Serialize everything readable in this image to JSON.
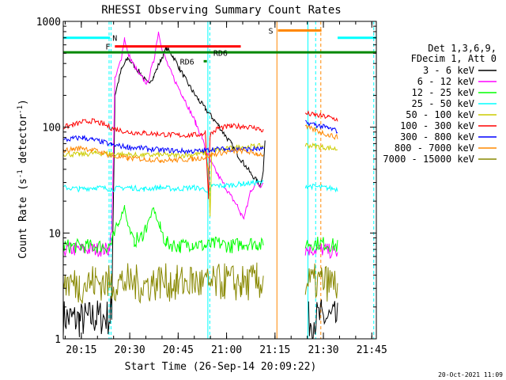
{
  "chart_data": {
    "type": "line",
    "title": "RHESSI Observing Summary Count Rates",
    "xlabel": "Start Time (26-Sep-14 20:09:22)",
    "ylabel_main": "Count Rate (s",
    "ylabel_sup": "-1",
    "ylabel_mid": " detector",
    "ylabel_sup2": "-1",
    "ylabel_end": ")",
    "footer": "20-Oct-2021 11:09",
    "y_scale": "log",
    "ylim": [
      1,
      1000
    ],
    "xlim_minutes": [
      0,
      97
    ],
    "x_ticks": [
      {
        "label": "20:15",
        "minutes": 5.6
      },
      {
        "label": "20:30",
        "minutes": 20.6
      },
      {
        "label": "20:45",
        "minutes": 35.6
      },
      {
        "label": "21:00",
        "minutes": 50.6
      },
      {
        "label": "21:15",
        "minutes": 65.6
      },
      {
        "label": "21:30",
        "minutes": 80.6
      },
      {
        "label": "21:45",
        "minutes": 95.6
      }
    ],
    "y_ticks": [
      {
        "label": "1",
        "value": 1
      },
      {
        "label": "10",
        "value": 10
      },
      {
        "label": "100",
        "value": 100
      },
      {
        "label": "1000",
        "value": 1000
      }
    ],
    "legend_header": [
      "Det 1,3,6,9,",
      "FDecim 1, Att 0"
    ],
    "series": [
      {
        "name": "3 - 6 keV",
        "color": "#000000",
        "points": [
          [
            0,
            1.6
          ],
          [
            5,
            1.5
          ],
          [
            10,
            1.6
          ],
          [
            14.5,
            1.6
          ],
          [
            15,
            2
          ],
          [
            16,
            200
          ],
          [
            18,
            350
          ],
          [
            20,
            450
          ],
          [
            22,
            380
          ],
          [
            24,
            320
          ],
          [
            26,
            260
          ],
          [
            28,
            300
          ],
          [
            30,
            420
          ],
          [
            32,
            560
          ],
          [
            34,
            470
          ],
          [
            36,
            360
          ],
          [
            38,
            280
          ],
          [
            40,
            220
          ],
          [
            42,
            180
          ],
          [
            44,
            150
          ],
          [
            46,
            125
          ],
          [
            48,
            105
          ],
          [
            50,
            85
          ],
          [
            52,
            70
          ],
          [
            54,
            55
          ],
          [
            56,
            45
          ],
          [
            58,
            37
          ],
          [
            60,
            31
          ],
          [
            61,
            28
          ],
          [
            62,
            40
          ],
          [
            62.5,
            75
          ],
          [
            75,
            null
          ],
          [
            76,
            1.5
          ],
          [
            80,
            1.6
          ],
          [
            85,
            1.5
          ],
          [
            85.5,
            null
          ]
        ]
      },
      {
        "name": "6 - 12 keV",
        "color": "#ff00ff",
        "points": [
          [
            0,
            7
          ],
          [
            14,
            7
          ],
          [
            15,
            10
          ],
          [
            16,
            280
          ],
          [
            18,
            450
          ],
          [
            19,
            700
          ],
          [
            20,
            500
          ],
          [
            22,
            380
          ],
          [
            24,
            300
          ],
          [
            26,
            260
          ],
          [
            28,
            420
          ],
          [
            29.5,
            800
          ],
          [
            31,
            500
          ],
          [
            33,
            350
          ],
          [
            35,
            260
          ],
          [
            37,
            200
          ],
          [
            39,
            150
          ],
          [
            41,
            110
          ],
          [
            43,
            80
          ],
          [
            44,
            62
          ],
          [
            46,
            45
          ],
          [
            48,
            35
          ],
          [
            50,
            28
          ],
          [
            52,
            22
          ],
          [
            54,
            18
          ],
          [
            55,
            15
          ],
          [
            56,
            14
          ],
          [
            57,
            18
          ],
          [
            58,
            25
          ],
          [
            60,
            30
          ],
          [
            61,
            28
          ],
          [
            62,
            30
          ],
          [
            62.5,
            null
          ],
          [
            75,
            7
          ],
          [
            80,
            7
          ],
          [
            85,
            6.5
          ],
          [
            85.5,
            null
          ]
        ]
      },
      {
        "name": "12 - 25 keV",
        "color": "#00ff00",
        "points": [
          [
            0,
            7.5
          ],
          [
            14,
            7.5
          ],
          [
            15,
            8
          ],
          [
            17,
            12
          ],
          [
            19,
            18
          ],
          [
            20,
            12
          ],
          [
            22,
            8.5
          ],
          [
            24,
            9
          ],
          [
            26,
            12
          ],
          [
            28,
            17
          ],
          [
            30,
            11
          ],
          [
            32,
            8
          ],
          [
            36,
            7.5
          ],
          [
            40,
            8
          ],
          [
            44,
            7.5
          ],
          [
            48,
            8
          ],
          [
            52,
            7.5
          ],
          [
            56,
            8
          ],
          [
            60,
            8
          ],
          [
            62,
            7.5
          ],
          [
            62.5,
            null
          ],
          [
            75,
            8
          ],
          [
            80,
            8
          ],
          [
            85,
            7.5
          ],
          [
            85.5,
            null
          ]
        ]
      },
      {
        "name": "25 - 50 keV",
        "color": "#00ffff",
        "points": [
          [
            0,
            27
          ],
          [
            5,
            26
          ],
          [
            10,
            27
          ],
          [
            15,
            26
          ],
          [
            20,
            27
          ],
          [
            25,
            26
          ],
          [
            30,
            27
          ],
          [
            35,
            26
          ],
          [
            40,
            27
          ],
          [
            44,
            26
          ],
          [
            45,
            22
          ],
          [
            46,
            28
          ],
          [
            50,
            28
          ],
          [
            55,
            29
          ],
          [
            60,
            30
          ],
          [
            62,
            30
          ],
          [
            62.5,
            null
          ],
          [
            75,
            28
          ],
          [
            80,
            27
          ],
          [
            85,
            26
          ],
          [
            85.5,
            null
          ]
        ]
      },
      {
        "name": "50 - 100 keV",
        "color": "#cccc00",
        "points": [
          [
            0,
            56
          ],
          [
            5,
            55
          ],
          [
            10,
            57
          ],
          [
            15,
            56
          ],
          [
            20,
            55
          ],
          [
            25,
            54
          ],
          [
            30,
            55
          ],
          [
            35,
            54
          ],
          [
            40,
            55
          ],
          [
            44,
            57
          ],
          [
            45,
            40
          ],
          [
            45.5,
            15
          ],
          [
            46,
            60
          ],
          [
            50,
            62
          ],
          [
            55,
            65
          ],
          [
            60,
            66
          ],
          [
            62,
            66
          ],
          [
            62.5,
            null
          ],
          [
            75,
            68
          ],
          [
            80,
            65
          ],
          [
            85,
            62
          ],
          [
            85.5,
            null
          ]
        ]
      },
      {
        "name": "100 - 300 keV",
        "color": "#ff0000",
        "points": [
          [
            0,
            100
          ],
          [
            3,
            105
          ],
          [
            6,
            112
          ],
          [
            9,
            115
          ],
          [
            12,
            108
          ],
          [
            15,
            98
          ],
          [
            20,
            90
          ],
          [
            25,
            88
          ],
          [
            30,
            86
          ],
          [
            35,
            84
          ],
          [
            40,
            84
          ],
          [
            43,
            86
          ],
          [
            44,
            90
          ],
          [
            45,
            22
          ],
          [
            45.5,
            85
          ],
          [
            48,
            98
          ],
          [
            52,
            102
          ],
          [
            56,
            102
          ],
          [
            60,
            98
          ],
          [
            62,
            92
          ],
          [
            62.5,
            null
          ],
          [
            75,
            135
          ],
          [
            78,
            130
          ],
          [
            82,
            125
          ],
          [
            85,
            118
          ],
          [
            85.5,
            null
          ]
        ]
      },
      {
        "name": "300 - 800 keV",
        "color": "#0000ff",
        "points": [
          [
            0,
            75
          ],
          [
            3,
            78
          ],
          [
            6,
            80
          ],
          [
            9,
            76
          ],
          [
            12,
            73
          ],
          [
            15,
            68
          ],
          [
            20,
            65
          ],
          [
            25,
            63
          ],
          [
            30,
            61
          ],
          [
            35,
            60
          ],
          [
            40,
            59
          ],
          [
            44,
            60
          ],
          [
            46,
            62
          ],
          [
            50,
            62
          ],
          [
            55,
            62
          ],
          [
            60,
            62
          ],
          [
            62,
            62
          ],
          [
            62.5,
            null
          ],
          [
            75,
            110
          ],
          [
            78,
            106
          ],
          [
            82,
            98
          ],
          [
            85,
            92
          ],
          [
            85.5,
            null
          ]
        ]
      },
      {
        "name": "800 - 7000 keV",
        "color": "#ff8800",
        "points": [
          [
            0,
            60
          ],
          [
            3,
            62
          ],
          [
            6,
            64
          ],
          [
            9,
            61
          ],
          [
            12,
            58
          ],
          [
            15,
            53
          ],
          [
            20,
            51
          ],
          [
            25,
            50
          ],
          [
            30,
            49
          ],
          [
            35,
            49
          ],
          [
            40,
            50
          ],
          [
            44,
            52
          ],
          [
            46,
            55
          ],
          [
            50,
            58
          ],
          [
            55,
            60
          ],
          [
            58,
            58
          ],
          [
            60,
            56
          ],
          [
            62,
            55
          ],
          [
            62.5,
            null
          ],
          [
            75,
            100
          ],
          [
            78,
            94
          ],
          [
            82,
            85
          ],
          [
            85,
            80
          ],
          [
            85.5,
            null
          ]
        ]
      },
      {
        "name": "7000 - 15000 keV",
        "color": "#888800",
        "points": [
          [
            0,
            3.5
          ],
          [
            5,
            3.2
          ],
          [
            10,
            3.5
          ],
          [
            15,
            3.3
          ],
          [
            20,
            3.5
          ],
          [
            25,
            3.2
          ],
          [
            30,
            3.5
          ],
          [
            35,
            3.3
          ],
          [
            40,
            3.5
          ],
          [
            45,
            3.2
          ],
          [
            50,
            3.5
          ],
          [
            55,
            3.3
          ],
          [
            60,
            3.5
          ],
          [
            62,
            3.4
          ],
          [
            62.5,
            null
          ],
          [
            75,
            3.3
          ],
          [
            80,
            3.5
          ],
          [
            85,
            3.2
          ],
          [
            85.5,
            null
          ]
        ]
      }
    ],
    "flags": [
      {
        "label": "N",
        "color": "#00ffff",
        "segments": [
          [
            0,
            14.5
          ],
          [
            85,
            97
          ]
        ],
        "level": 700
      },
      {
        "label": "F",
        "color": "#ff0000",
        "segments": [
          [
            16,
            55
          ]
        ],
        "level": 580
      },
      {
        "label": "S",
        "color": "#ff8800",
        "segments": [
          [
            66.5,
            80
          ]
        ],
        "level": 820
      },
      {
        "label": "",
        "color": "#008800",
        "segments": [
          [
            0,
            97
          ]
        ],
        "level": 510
      },
      {
        "label": "RD6",
        "color": "#008800",
        "segments": [
          [
            43.5,
            44.5
          ]
        ],
        "level": 420
      }
    ],
    "annotations": [
      {
        "text": "RD6",
        "color": "#008800"
      },
      {
        "text": "RD6",
        "color": "#008800"
      }
    ],
    "vlines": [
      {
        "minutes": 14.2,
        "color": "#00ffff",
        "style": "dashed"
      },
      {
        "minutes": 14.8,
        "color": "#00ffff",
        "style": "dashed"
      },
      {
        "minutes": 44.8,
        "color": "#00ffff",
        "style": "solid"
      },
      {
        "minutes": 45.4,
        "color": "#00ffff",
        "style": "dashed"
      },
      {
        "minutes": 66.2,
        "color": "#ff8800",
        "style": "solid"
      },
      {
        "minutes": 75.8,
        "color": "#00ffff",
        "style": "solid"
      },
      {
        "minutes": 79.8,
        "color": "#ff8800",
        "style": "dashed"
      },
      {
        "minutes": 78.2,
        "color": "#00ffff",
        "style": "dashed"
      },
      {
        "minutes": 96.2,
        "color": "#00ffff",
        "style": "dashed"
      }
    ]
  }
}
